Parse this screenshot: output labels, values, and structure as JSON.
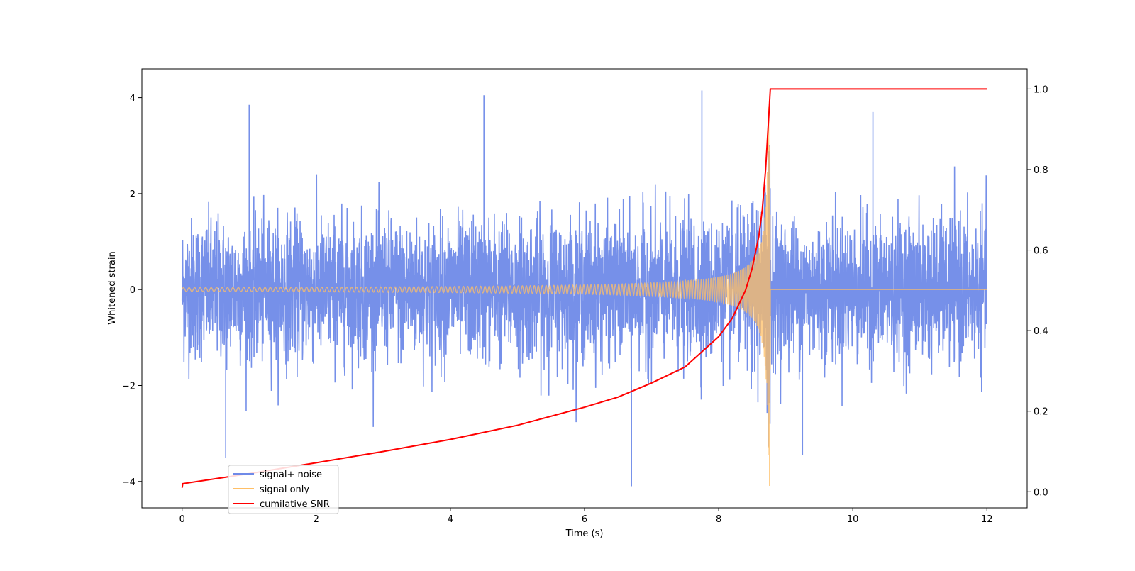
{
  "chart_data": {
    "type": "line",
    "title": "",
    "xlabel": "Time (s)",
    "ylabel": "Whitened strain",
    "y2label": "",
    "xlim": [
      -0.6,
      12.6
    ],
    "ylim": [
      -4.55,
      4.6
    ],
    "y2lim": [
      -0.04,
      1.05
    ],
    "xticks": [
      0,
      2,
      4,
      6,
      8,
      10,
      12
    ],
    "yticks": [
      -4,
      -2,
      0,
      2,
      4
    ],
    "y2ticks": [
      0.0,
      0.2,
      0.4,
      0.6,
      0.8,
      1.0
    ],
    "xtick_labels": [
      "0",
      "2",
      "4",
      "6",
      "8",
      "10",
      "12"
    ],
    "ytick_labels": [
      "−4",
      "−2",
      "0",
      "2",
      "4"
    ],
    "y2tick_labels": [
      "0.0",
      "0.2",
      "0.4",
      "0.6",
      "0.8",
      "1.0"
    ],
    "grid": false,
    "legend_position": "lower-left",
    "series": [
      {
        "name": "signal+ noise",
        "axis": "left",
        "color": "#6f8ae8",
        "x_range": [
          0,
          12
        ],
        "noise_std": 1.0,
        "peaks": [
          [
            1.0,
            3.85
          ],
          [
            4.5,
            4.05
          ],
          [
            7.75,
            4.15
          ],
          [
            10.3,
            3.7
          ],
          [
            6.7,
            -4.1
          ],
          [
            0.65,
            -3.5
          ],
          [
            9.25,
            -3.45
          ]
        ]
      },
      {
        "name": "signal only",
        "axis": "left",
        "color": "#ffbf66",
        "x_range": [
          0,
          12
        ],
        "merger_time": 8.77,
        "amplitude_start": 0.04,
        "amplitude_peak": 4.1,
        "post_merger_value": 0.0
      },
      {
        "name": "cumilative SNR",
        "axis": "right",
        "color": "#ff0000",
        "x": [
          0,
          0.01,
          1,
          2,
          3,
          4,
          5,
          6,
          6.5,
          7,
          7.5,
          8,
          8.2,
          8.4,
          8.5,
          8.6,
          8.65,
          8.7,
          8.75,
          8.77,
          12
        ],
        "y": [
          0.01,
          0.02,
          0.045,
          0.072,
          0.1,
          0.13,
          0.165,
          0.21,
          0.235,
          0.27,
          0.31,
          0.385,
          0.43,
          0.5,
          0.555,
          0.635,
          0.7,
          0.8,
          0.94,
          1.0,
          1.0
        ]
      }
    ]
  }
}
